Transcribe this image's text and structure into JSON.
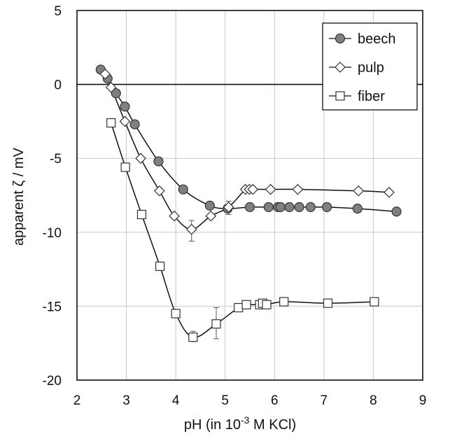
{
  "chart_data": {
    "type": "line",
    "xlabel": {
      "prefix": "pH (in 10",
      "exponent": "-3",
      "unit": " M KCl)"
    },
    "ylabel": "apparent ζ / mV",
    "xlim": [
      2,
      9
    ],
    "ylim": [
      -20,
      5
    ],
    "xticks": [
      2,
      3,
      4,
      5,
      6,
      7,
      8,
      9
    ],
    "yticks": [
      5,
      0,
      -5,
      -10,
      -15,
      -20
    ],
    "grid": true,
    "reference_line_y": 0,
    "legend_position": "top-right",
    "series": [
      {
        "name": "beech",
        "marker": "circle",
        "color": "#808080",
        "x": [
          2.48,
          2.62,
          2.79,
          2.97,
          3.17,
          3.65,
          4.15,
          4.69,
          5.05,
          5.5,
          5.88,
          6.07,
          6.12,
          6.3,
          6.5,
          6.73,
          7.06,
          7.68,
          8.47
        ],
        "y": [
          1.0,
          0.4,
          -0.6,
          -1.5,
          -2.7,
          -5.2,
          -7.1,
          -8.2,
          -8.4,
          -8.3,
          -8.3,
          -8.3,
          -8.3,
          -8.3,
          -8.3,
          -8.3,
          -8.3,
          -8.4,
          -8.6
        ],
        "error_bars": []
      },
      {
        "name": "pulp",
        "marker": "diamond",
        "color": "#ffffff",
        "x": [
          2.57,
          2.69,
          2.97,
          3.29,
          3.67,
          3.97,
          4.32,
          4.71,
          5.07,
          5.41,
          5.49,
          5.56,
          5.92,
          6.47,
          7.7,
          8.32
        ],
        "y": [
          0.7,
          -0.2,
          -2.5,
          -5.0,
          -7.2,
          -8.9,
          -9.8,
          -8.9,
          -8.3,
          -7.1,
          -7.1,
          -7.1,
          -7.1,
          -7.1,
          -7.2,
          -7.3
        ],
        "error_bars": [
          {
            "x": 4.32,
            "low": -10.6,
            "high": -9.2
          },
          {
            "x": 5.07,
            "low": -8.8,
            "high": -7.9
          }
        ]
      },
      {
        "name": "fiber",
        "marker": "square",
        "color": "#ffffff",
        "x": [
          2.69,
          2.98,
          3.31,
          3.68,
          4.0,
          4.35,
          4.82,
          5.27,
          5.43,
          5.7,
          5.76,
          5.84,
          6.19,
          7.08,
          8.02
        ],
        "y": [
          -2.6,
          -5.6,
          -8.8,
          -12.3,
          -15.5,
          -17.1,
          -16.2,
          -15.1,
          -14.9,
          -14.9,
          -14.8,
          -14.9,
          -14.7,
          -14.8,
          -14.7
        ],
        "error_bars": [
          {
            "x": 4.35,
            "low": -17.4,
            "high": -16.7
          },
          {
            "x": 4.82,
            "low": -17.2,
            "high": -15.1
          }
        ]
      }
    ]
  }
}
